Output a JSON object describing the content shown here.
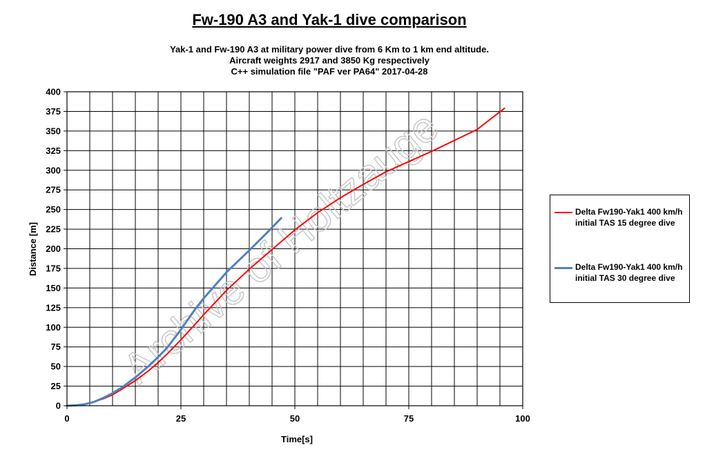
{
  "chart_data": {
    "type": "line",
    "title": "Fw-190 A3 and Yak-1 dive comparison",
    "subtitle_lines": [
      "Yak-1 and Fw-190 A3 at military power dive from 6 Km to 1 km end altitude.",
      "Aircraft weights 2917 and 3850 Kg respectively",
      "C++ simulation file \"PAF  ver PA64\" 2017-04-28"
    ],
    "xlabel": "Time[s]",
    "ylabel": "Distance [m]",
    "xlim": [
      0,
      100
    ],
    "ylim": [
      0,
      400
    ],
    "x_ticks": [
      0,
      25,
      50,
      75,
      100
    ],
    "y_ticks": [
      0,
      25,
      50,
      75,
      100,
      125,
      150,
      175,
      200,
      225,
      250,
      275,
      300,
      325,
      350,
      375,
      400
    ],
    "x_grid_step": 5,
    "y_grid_step": 25,
    "grid": true,
    "legend_position": "right",
    "watermark": "Archive of Holtzauge",
    "series": [
      {
        "name": "Delta Fw190-Yak1 400 km/h initial TAS 15 degree dive",
        "color": "#ff0000",
        "x": [
          0,
          2,
          4,
          6,
          8,
          10,
          12,
          15,
          18,
          20,
          22,
          25,
          28,
          30,
          35,
          40,
          45,
          50,
          55,
          60,
          65,
          70,
          75,
          80,
          85,
          90,
          96
        ],
        "y": [
          0,
          0.5,
          2,
          5,
          9,
          14,
          21,
          32,
          45,
          55,
          66,
          84,
          103,
          116,
          147,
          174,
          199,
          224,
          246,
          265,
          282,
          298,
          311,
          324,
          338,
          352,
          379
        ]
      },
      {
        "name": "Delta Fw190-Yak1 400 km/h initial TAS 30 degree dive",
        "color": "#4f81bd",
        "x": [
          0,
          2,
          4,
          6,
          8,
          10,
          12,
          15,
          18,
          20,
          22,
          25,
          28,
          30,
          35,
          40,
          44,
          47
        ],
        "y": [
          0,
          0.5,
          2,
          5,
          10,
          16,
          23,
          36,
          51,
          62,
          74,
          97,
          122,
          137,
          170,
          198,
          221,
          239
        ]
      }
    ]
  }
}
